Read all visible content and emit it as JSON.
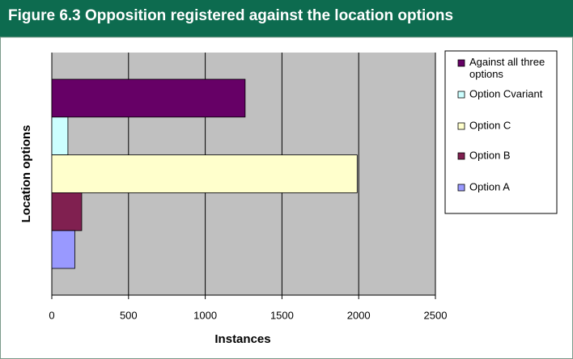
{
  "chart_data": {
    "type": "hbar",
    "title": "Figure 6.3 Opposition registered against the location options",
    "x_label": "Instances",
    "y_label": "Location options",
    "categories": [
      null
    ],
    "series": [
      {
        "name": "Against all three options",
        "color": "#660066",
        "values": [
          1260
        ]
      },
      {
        "name": "Option Cvariant",
        "color": "#ccffff",
        "values": [
          105
        ]
      },
      {
        "name": "Option C",
        "color": "#ffffcc",
        "values": [
          1990
        ]
      },
      {
        "name": "Option B",
        "color": "#802050",
        "values": [
          195
        ]
      },
      {
        "name": "Option A",
        "color": "#9999ff",
        "values": [
          150
        ]
      }
    ],
    "xlim": [
      0,
      2500
    ],
    "xticks": [
      0,
      500,
      1000,
      1500,
      2000,
      2500
    ],
    "grid": true
  }
}
